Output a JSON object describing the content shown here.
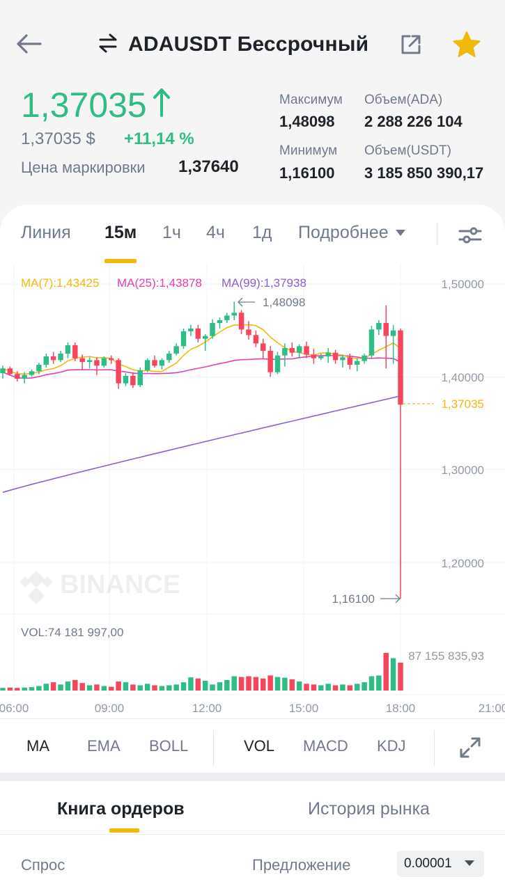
{
  "header": {
    "title": "ADAUSDT Бессрочный"
  },
  "price": {
    "last": "1,37035",
    "usd": "1,37035 $",
    "change": "+11,14 %",
    "mark_label": "Цена маркировки",
    "mark_value": "1,37640"
  },
  "stats": {
    "high_label": "Максимум",
    "high_value": "1,48098",
    "low_label": "Минимум",
    "low_value": "1,16100",
    "vol_base_label": "Объем(ADA)",
    "vol_base_value": "2 288 226 104",
    "vol_quote_label": "Объем(USDT)",
    "vol_quote_value": "3 185 850 390,17"
  },
  "intervals": [
    {
      "label": "Линия",
      "active": false
    },
    {
      "label": "15м",
      "active": true
    },
    {
      "label": "1ч",
      "active": false
    },
    {
      "label": "4ч",
      "active": false
    },
    {
      "label": "1д",
      "active": false
    },
    {
      "label": "Подробнее",
      "active": false
    }
  ],
  "chart": {
    "ma7": "MA(7):1,43425",
    "ma25": "MA(25):1,43878",
    "ma99": "MA(99):1,37938",
    "price_ticks": [
      "1,50000",
      "1,40000",
      "1,30000",
      "1,20000"
    ],
    "current_price": "1,37035",
    "high_marker": "1,48098",
    "low_marker": "1,16100",
    "watermark": "BINANCE",
    "vol_label": "VOL:74 181 997,00",
    "vol_max": "87 155 835,93",
    "time_ticks": [
      "06:00",
      "09:00",
      "12:00",
      "15:00",
      "18:00",
      "21:00"
    ],
    "colors": {
      "up": "#2ebd85",
      "down": "#f6465d",
      "ma7": "#f0b90b",
      "ma25": "#e43fb3",
      "ma99": "#8b5fd0"
    }
  },
  "indicators": {
    "main": [
      "MA",
      "EMA",
      "BOLL"
    ],
    "sub": [
      "VOL",
      "MACD",
      "KDJ"
    ]
  },
  "orderbook": {
    "tab_book": "Книга ордеров",
    "tab_history": "История рынка",
    "bid_label": "Спрос",
    "ask_label": "Предложение",
    "precision": "0.00001"
  },
  "chart_data": {
    "type": "candlestick",
    "interval": "15m",
    "ylim": [
      1.14,
      1.52
    ],
    "x_ticks": [
      "06:00",
      "09:00",
      "12:00",
      "15:00",
      "18:00",
      "21:00"
    ],
    "candles": [
      {
        "o": 1.404,
        "h": 1.412,
        "l": 1.398,
        "c": 1.409
      },
      {
        "o": 1.409,
        "h": 1.411,
        "l": 1.401,
        "c": 1.403
      },
      {
        "o": 1.403,
        "h": 1.406,
        "l": 1.395,
        "c": 1.398
      },
      {
        "o": 1.398,
        "h": 1.405,
        "l": 1.393,
        "c": 1.402
      },
      {
        "o": 1.402,
        "h": 1.408,
        "l": 1.4,
        "c": 1.406
      },
      {
        "o": 1.406,
        "h": 1.415,
        "l": 1.403,
        "c": 1.413
      },
      {
        "o": 1.413,
        "h": 1.425,
        "l": 1.41,
        "c": 1.422
      },
      {
        "o": 1.422,
        "h": 1.427,
        "l": 1.414,
        "c": 1.418
      },
      {
        "o": 1.418,
        "h": 1.428,
        "l": 1.416,
        "c": 1.425
      },
      {
        "o": 1.425,
        "h": 1.437,
        "l": 1.42,
        "c": 1.434
      },
      {
        "o": 1.434,
        "h": 1.437,
        "l": 1.417,
        "c": 1.42
      },
      {
        "o": 1.42,
        "h": 1.424,
        "l": 1.408,
        "c": 1.416
      },
      {
        "o": 1.416,
        "h": 1.421,
        "l": 1.409,
        "c": 1.418
      },
      {
        "o": 1.418,
        "h": 1.421,
        "l": 1.402,
        "c": 1.412
      },
      {
        "o": 1.412,
        "h": 1.422,
        "l": 1.41,
        "c": 1.42
      },
      {
        "o": 1.42,
        "h": 1.423,
        "l": 1.414,
        "c": 1.418
      },
      {
        "o": 1.418,
        "h": 1.42,
        "l": 1.387,
        "c": 1.393
      },
      {
        "o": 1.393,
        "h": 1.404,
        "l": 1.39,
        "c": 1.401
      },
      {
        "o": 1.401,
        "h": 1.405,
        "l": 1.388,
        "c": 1.391
      },
      {
        "o": 1.391,
        "h": 1.41,
        "l": 1.389,
        "c": 1.407
      },
      {
        "o": 1.407,
        "h": 1.42,
        "l": 1.405,
        "c": 1.418
      },
      {
        "o": 1.418,
        "h": 1.423,
        "l": 1.41,
        "c": 1.412
      },
      {
        "o": 1.412,
        "h": 1.42,
        "l": 1.408,
        "c": 1.418
      },
      {
        "o": 1.418,
        "h": 1.428,
        "l": 1.415,
        "c": 1.425
      },
      {
        "o": 1.425,
        "h": 1.436,
        "l": 1.423,
        "c": 1.433
      },
      {
        "o": 1.433,
        "h": 1.452,
        "l": 1.43,
        "c": 1.449
      },
      {
        "o": 1.449,
        "h": 1.456,
        "l": 1.444,
        "c": 1.452
      },
      {
        "o": 1.452,
        "h": 1.456,
        "l": 1.437,
        "c": 1.441
      },
      {
        "o": 1.441,
        "h": 1.446,
        "l": 1.428,
        "c": 1.444
      },
      {
        "o": 1.444,
        "h": 1.462,
        "l": 1.441,
        "c": 1.458
      },
      {
        "o": 1.458,
        "h": 1.464,
        "l": 1.452,
        "c": 1.461
      },
      {
        "o": 1.461,
        "h": 1.469,
        "l": 1.458,
        "c": 1.466
      },
      {
        "o": 1.466,
        "h": 1.481,
        "l": 1.461,
        "c": 1.469
      },
      {
        "o": 1.469,
        "h": 1.472,
        "l": 1.446,
        "c": 1.451
      },
      {
        "o": 1.451,
        "h": 1.46,
        "l": 1.44,
        "c": 1.445
      },
      {
        "o": 1.445,
        "h": 1.45,
        "l": 1.432,
        "c": 1.436
      },
      {
        "o": 1.436,
        "h": 1.441,
        "l": 1.42,
        "c": 1.428
      },
      {
        "o": 1.428,
        "h": 1.433,
        "l": 1.4,
        "c": 1.405
      },
      {
        "o": 1.405,
        "h": 1.427,
        "l": 1.403,
        "c": 1.423
      },
      {
        "o": 1.423,
        "h": 1.436,
        "l": 1.411,
        "c": 1.431
      },
      {
        "o": 1.431,
        "h": 1.437,
        "l": 1.422,
        "c": 1.426
      },
      {
        "o": 1.426,
        "h": 1.435,
        "l": 1.42,
        "c": 1.433
      },
      {
        "o": 1.433,
        "h": 1.438,
        "l": 1.42,
        "c": 1.424
      },
      {
        "o": 1.424,
        "h": 1.43,
        "l": 1.414,
        "c": 1.42
      },
      {
        "o": 1.42,
        "h": 1.425,
        "l": 1.418,
        "c": 1.422
      },
      {
        "o": 1.422,
        "h": 1.431,
        "l": 1.415,
        "c": 1.426
      },
      {
        "o": 1.426,
        "h": 1.429,
        "l": 1.414,
        "c": 1.418
      },
      {
        "o": 1.418,
        "h": 1.424,
        "l": 1.41,
        "c": 1.421
      },
      {
        "o": 1.421,
        "h": 1.425,
        "l": 1.408,
        "c": 1.413
      },
      {
        "o": 1.413,
        "h": 1.42,
        "l": 1.406,
        "c": 1.417
      },
      {
        "o": 1.417,
        "h": 1.425,
        "l": 1.414,
        "c": 1.423
      },
      {
        "o": 1.423,
        "h": 1.455,
        "l": 1.42,
        "c": 1.451
      },
      {
        "o": 1.451,
        "h": 1.461,
        "l": 1.445,
        "c": 1.458
      },
      {
        "o": 1.458,
        "h": 1.477,
        "l": 1.409,
        "c": 1.444
      },
      {
        "o": 1.444,
        "h": 1.456,
        "l": 1.414,
        "c": 1.45
      },
      {
        "o": 1.45,
        "h": 1.452,
        "l": 1.161,
        "c": 1.37
      }
    ],
    "volume_max": 87155835.93
  }
}
